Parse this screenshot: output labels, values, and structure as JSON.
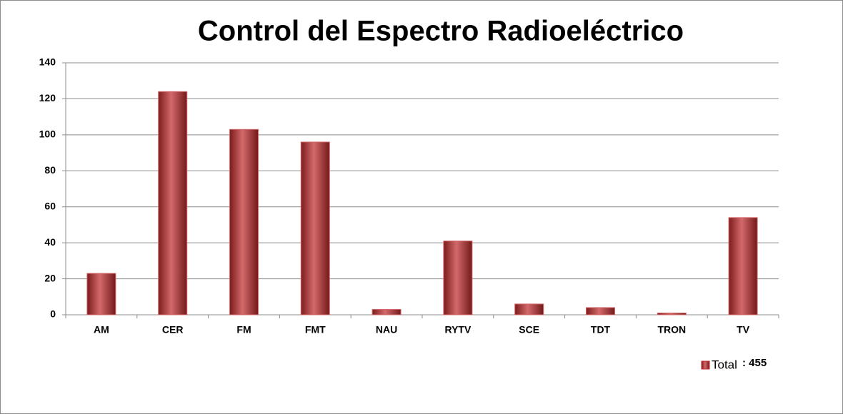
{
  "chart_data": {
    "type": "bar",
    "title": "Control del Espectro Radioeléctrico",
    "categories": [
      "AM",
      "CER",
      "FM",
      "FMT",
      "NAU",
      "RYTV",
      "SCE",
      "TDT",
      "TRON",
      "TV"
    ],
    "series": [
      {
        "name": "Total",
        "color": "#c0292b",
        "values": [
          23,
          124,
          103,
          96,
          3,
          41,
          6,
          4,
          1,
          54
        ]
      }
    ],
    "annotation": ": 455",
    "ylim": [
      0,
      140
    ],
    "yticks": [
      0,
      20,
      40,
      60,
      80,
      100,
      120,
      140
    ],
    "grid": true,
    "legend": "bottom-right"
  }
}
